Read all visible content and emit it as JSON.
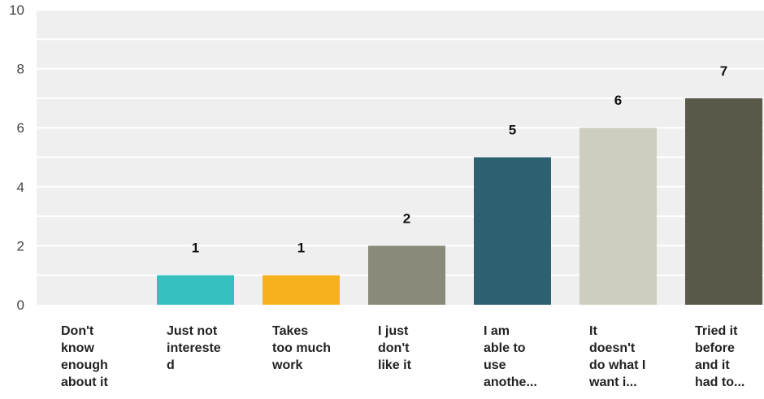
{
  "chart_data": {
    "type": "bar",
    "categories": [
      [
        "Don't",
        "know",
        "enough",
        "about it"
      ],
      [
        "Just not",
        "intereste",
        "d"
      ],
      [
        "Takes",
        "too much",
        "work"
      ],
      [
        "I just",
        "don't",
        "like it"
      ],
      [
        "I am",
        "able to",
        "use",
        "anothe..."
      ],
      [
        "It",
        "doesn't",
        "do what I",
        "want i..."
      ],
      [
        "Tried it",
        "before",
        "and it",
        "had to..."
      ]
    ],
    "values": [
      0,
      1,
      1,
      2,
      5,
      6,
      7
    ],
    "data_labels": [
      "",
      "1",
      "1",
      "2",
      "5",
      "6",
      "7"
    ],
    "ylim": [
      0,
      10
    ],
    "yticks": [
      "0",
      "2",
      "4",
      "6",
      "8",
      "10"
    ],
    "grid": true,
    "colors": [
      "#5a5545",
      "#35bfbf",
      "#f7b01e",
      "#8a8a7a",
      "#2e6170",
      "#cfcdbf",
      "#5a5848"
    ],
    "plot_background": "#efefef",
    "title": "",
    "xlabel": "",
    "ylabel": ""
  }
}
